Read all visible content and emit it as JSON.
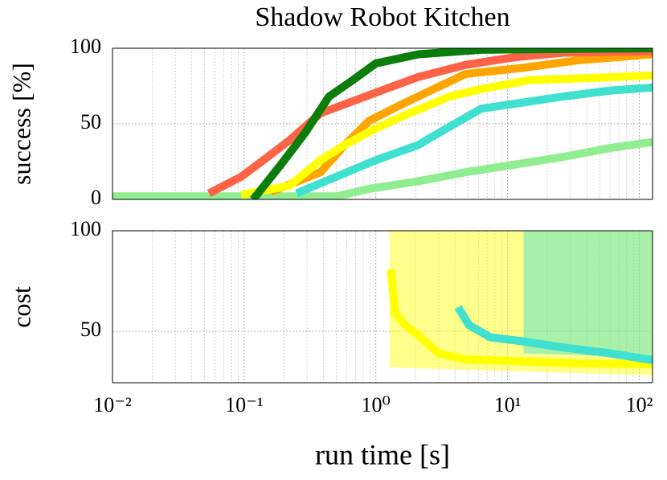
{
  "chart_data": [
    {
      "type": "line",
      "title": "Shadow Robot Kitchen",
      "ylabel": "success [%]",
      "xlim": [
        0.01,
        126
      ],
      "ylim": [
        0,
        100
      ],
      "yticks": [
        0,
        50,
        100
      ],
      "log_x": true,
      "grid": true,
      "series": [
        {
          "color": "#90ee90",
          "x": [
            0.01,
            0.5,
            0.89,
            2.1,
            4.8,
            11.2,
            26,
            60,
            126
          ],
          "values": [
            2,
            2,
            7,
            12,
            18,
            23,
            28,
            34,
            38
          ]
        },
        {
          "color": "#40e0d0",
          "x": [
            0.25,
            0.5,
            1.0,
            2.1,
            3.6,
            6.3,
            12.9,
            26,
            60,
            126
          ],
          "values": [
            4,
            15,
            26,
            36,
            48,
            60,
            64,
            68,
            72,
            74
          ]
        },
        {
          "color": "#ffa500",
          "x": [
            0.16,
            0.38,
            0.58,
            0.89,
            1.58,
            2.75,
            4.8,
            12.9,
            34,
            126
          ],
          "values": [
            5,
            18,
            36,
            52,
            63,
            73,
            83,
            87,
            92,
            96
          ]
        },
        {
          "color": "#ffff00",
          "x": [
            0.095,
            0.22,
            0.38,
            0.58,
            1.0,
            1.8,
            3.6,
            6.3,
            14.8,
            34,
            126
          ],
          "values": [
            3,
            9,
            26,
            36,
            47,
            57,
            68,
            73,
            79,
            80,
            82
          ]
        },
        {
          "color": "#ff6347",
          "x": [
            0.054,
            0.095,
            0.14,
            0.22,
            0.38,
            0.67,
            1.18,
            2.1,
            4.8,
            11.2,
            26,
            126
          ],
          "values": [
            4,
            15,
            26,
            39,
            57,
            65,
            73,
            81,
            89,
            94,
            97,
            98
          ]
        },
        {
          "color": "#0a7d0a",
          "x": [
            0.117,
            0.19,
            0.29,
            0.44,
            0.67,
            1.0,
            2.1,
            6.3,
            126
          ],
          "values": [
            0,
            23,
            44,
            68,
            79,
            90,
            96,
            99,
            100
          ]
        }
      ]
    },
    {
      "type": "line",
      "ylabel": "cost",
      "xlabel": "run time [s]",
      "xlim": [
        0.01,
        126
      ],
      "ylim": [
        24.4,
        100
      ],
      "yticks": [
        50,
        100
      ],
      "log_x": true,
      "grid": true,
      "xticks": [
        {
          "value": 0.01,
          "label": "10⁻²"
        },
        {
          "value": 0.1,
          "label": "10⁻¹"
        },
        {
          "value": 1,
          "label": "10⁰"
        },
        {
          "value": 10,
          "label": "10¹"
        },
        {
          "value": 100,
          "label": "10²"
        }
      ],
      "series": [
        {
          "color": "#ffff00",
          "x": [
            1.3,
            1.4,
            1.67,
            2.1,
            3.0,
            4.8,
            12.9,
            34,
            126
          ],
          "values": [
            80.8,
            59,
            53,
            48,
            39,
            36,
            35,
            34,
            33.6
          ],
          "band": {
            "x": [
              1.27,
              126
            ],
            "low": [
              32,
              28
            ],
            "high": [
              100,
              100
            ]
          }
        },
        {
          "color": "#40e0d0",
          "x": [
            4.2,
            5.1,
            7.4,
            12.9,
            26,
            60,
            126
          ],
          "values": [
            62,
            53,
            47,
            45,
            42,
            39,
            35.6
          ],
          "band": {
            "x": [
              13.2,
              126
            ],
            "low": [
              39,
              37
            ],
            "high": [
              100,
              100
            ]
          }
        }
      ]
    }
  ]
}
